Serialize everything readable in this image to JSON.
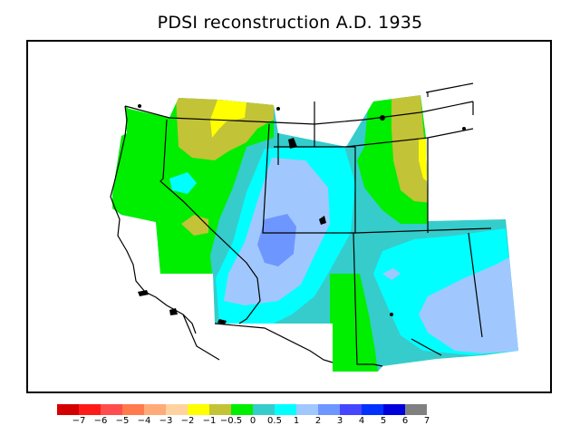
{
  "title": "PDSI reconstruction A.D. 1935",
  "legend": {
    "colors": [
      "#d40000",
      "#ff1a1a",
      "#ff4d4d",
      "#ff7a4d",
      "#ffaa78",
      "#ffd2a0",
      "#ffff00",
      "#c3c337",
      "#00ee00",
      "#36cccc",
      "#00ffff",
      "#a0c8ff",
      "#6e96ff",
      "#4646ff",
      "#0032ff",
      "#0000dc",
      "#808080"
    ],
    "labels": [
      "−7",
      "−6",
      "−5",
      "−4",
      "−3",
      "−2",
      "−1",
      "−0.5",
      "0",
      "0.5",
      "1",
      "2",
      "3",
      "4",
      "5",
      "6",
      "7"
    ]
  }
}
